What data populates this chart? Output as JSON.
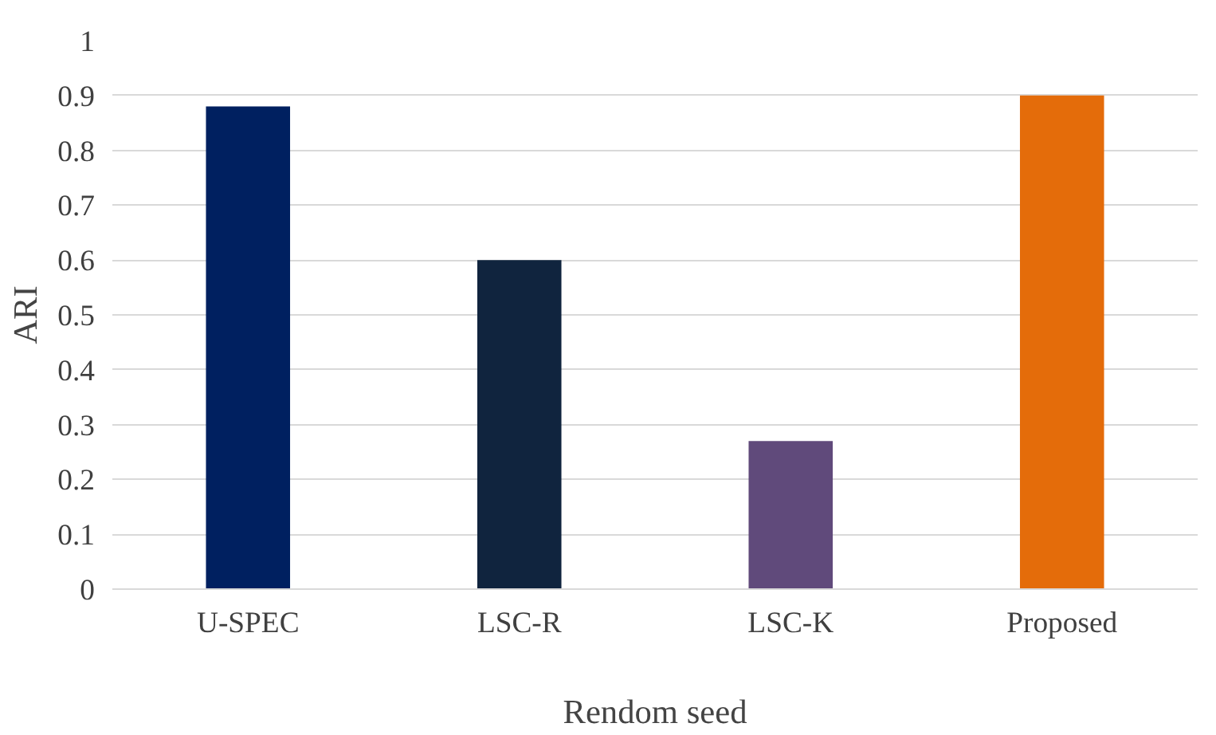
{
  "chart_data": {
    "type": "bar",
    "xlabel": "Rendom seed",
    "ylabel": "ARI",
    "categories": [
      "U-SPEC",
      "LSC-R",
      "LSC-K",
      "Proposed"
    ],
    "values": [
      0.88,
      0.6,
      0.27,
      0.9
    ],
    "colors": [
      "#002060",
      "#10243e",
      "#604a7b",
      "#e46c0a"
    ],
    "ylim": [
      0,
      1
    ],
    "yticks": [
      0,
      0.1,
      0.2,
      0.3,
      0.4,
      0.5,
      0.6,
      0.7,
      0.8,
      0.9,
      1
    ],
    "grid": "y"
  }
}
